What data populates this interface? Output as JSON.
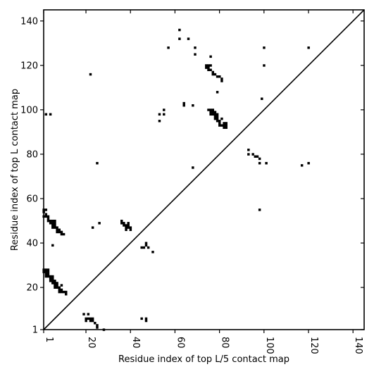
{
  "chart_data": {
    "type": "scatter",
    "xlabel": "Residue index of top L/5 contact map",
    "ylabel": "Residue index of top L contact map",
    "xlim": [
      1,
      145
    ],
    "ylim": [
      1,
      145
    ],
    "x_ticks": [
      1,
      20,
      40,
      60,
      80,
      100,
      120,
      140
    ],
    "y_ticks": [
      1,
      20,
      40,
      60,
      80,
      100,
      120,
      140
    ],
    "x_tick_labels": [
      "1",
      "20",
      "40",
      "60",
      "80",
      "100",
      "120",
      "140"
    ],
    "y_tick_labels": [
      "1",
      "20",
      "40",
      "60",
      "80",
      "100",
      "120",
      "140"
    ],
    "diagonal": true,
    "grid": false,
    "marker": "square",
    "marker_color": "#000000",
    "series": [
      {
        "name": "",
        "points": [
          [
            62,
            136
          ],
          [
            66,
            132
          ],
          [
            62,
            132
          ],
          [
            57,
            128
          ],
          [
            69,
            128
          ],
          [
            69,
            125
          ],
          [
            100,
            128
          ],
          [
            120,
            128
          ],
          [
            76,
            124
          ],
          [
            74,
            120
          ],
          [
            75,
            120
          ],
          [
            76,
            120
          ],
          [
            74,
            119
          ],
          [
            75,
            119
          ],
          [
            75,
            118
          ],
          [
            76,
            118
          ],
          [
            77,
            117
          ],
          [
            77,
            116
          ],
          [
            78,
            116
          ],
          [
            79,
            115
          ],
          [
            80,
            115
          ],
          [
            81,
            114
          ],
          [
            81,
            113
          ],
          [
            22,
            116
          ],
          [
            100,
            120
          ],
          [
            79,
            108
          ],
          [
            99,
            105
          ],
          [
            64,
            103
          ],
          [
            64,
            102
          ],
          [
            68,
            102
          ],
          [
            55,
            100
          ],
          [
            75,
            100
          ],
          [
            76,
            100
          ],
          [
            77,
            100
          ],
          [
            76,
            99
          ],
          [
            77,
            99
          ],
          [
            78,
            99
          ],
          [
            76,
            98
          ],
          [
            77,
            98
          ],
          [
            78,
            98
          ],
          [
            79,
            98
          ],
          [
            78,
            97
          ],
          [
            79,
            97
          ],
          [
            78,
            96
          ],
          [
            79,
            96
          ],
          [
            79,
            95
          ],
          [
            80,
            95
          ],
          [
            81,
            96
          ],
          [
            80,
            94
          ],
          [
            80,
            93
          ],
          [
            81,
            93
          ],
          [
            82,
            93
          ],
          [
            83,
            93
          ],
          [
            82,
            94
          ],
          [
            83,
            94
          ],
          [
            82,
            92
          ],
          [
            83,
            92
          ],
          [
            53,
            98
          ],
          [
            55,
            98
          ],
          [
            53,
            95
          ],
          [
            2,
            98
          ],
          [
            4,
            98
          ],
          [
            25,
            76
          ],
          [
            68,
            74
          ],
          [
            93,
            82
          ],
          [
            93,
            80
          ],
          [
            95,
            80
          ],
          [
            96,
            79
          ],
          [
            97,
            79
          ],
          [
            98,
            78
          ],
          [
            98,
            76
          ],
          [
            101,
            76
          ],
          [
            117,
            75
          ],
          [
            120,
            76
          ],
          [
            98,
            55
          ],
          [
            1,
            55
          ],
          [
            2,
            55
          ],
          [
            1,
            54
          ],
          [
            2,
            53
          ],
          [
            1,
            52
          ],
          [
            2,
            52
          ],
          [
            3,
            52
          ],
          [
            3,
            51
          ],
          [
            3,
            50
          ],
          [
            4,
            50
          ],
          [
            5,
            50
          ],
          [
            6,
            50
          ],
          [
            4,
            49
          ],
          [
            5,
            49
          ],
          [
            6,
            49
          ],
          [
            5,
            48
          ],
          [
            6,
            48
          ],
          [
            5,
            47
          ],
          [
            6,
            47
          ],
          [
            7,
            47
          ],
          [
            7,
            46
          ],
          [
            8,
            46
          ],
          [
            7,
            45
          ],
          [
            8,
            45
          ],
          [
            9,
            45
          ],
          [
            9,
            44
          ],
          [
            10,
            44
          ],
          [
            23,
            47
          ],
          [
            26,
            49
          ],
          [
            36,
            50
          ],
          [
            36,
            49
          ],
          [
            37,
            49
          ],
          [
            37,
            48
          ],
          [
            38,
            48
          ],
          [
            39,
            49
          ],
          [
            39,
            48
          ],
          [
            38,
            47
          ],
          [
            39,
            47
          ],
          [
            40,
            47
          ],
          [
            38,
            46
          ],
          [
            40,
            46
          ],
          [
            5,
            39
          ],
          [
            45,
            38
          ],
          [
            46,
            38
          ],
          [
            47,
            40
          ],
          [
            47,
            39
          ],
          [
            48,
            38
          ],
          [
            50,
            36
          ],
          [
            1,
            28
          ],
          [
            2,
            28
          ],
          [
            3,
            28
          ],
          [
            1,
            27
          ],
          [
            2,
            27
          ],
          [
            3,
            27
          ],
          [
            2,
            26
          ],
          [
            3,
            26
          ],
          [
            2,
            25
          ],
          [
            3,
            25
          ],
          [
            4,
            25
          ],
          [
            5,
            25
          ],
          [
            4,
            24
          ],
          [
            5,
            24
          ],
          [
            4,
            23
          ],
          [
            5,
            23
          ],
          [
            6,
            23
          ],
          [
            5,
            22
          ],
          [
            6,
            22
          ],
          [
            7,
            22
          ],
          [
            6,
            21
          ],
          [
            7,
            21
          ],
          [
            6,
            20
          ],
          [
            7,
            20
          ],
          [
            8,
            20
          ],
          [
            9,
            21
          ],
          [
            8,
            19
          ],
          [
            9,
            19
          ],
          [
            8,
            18
          ],
          [
            9,
            18
          ],
          [
            10,
            18
          ],
          [
            11,
            18
          ],
          [
            11,
            17
          ],
          [
            19,
            8
          ],
          [
            21,
            8
          ],
          [
            20,
            6
          ],
          [
            21,
            6
          ],
          [
            22,
            6
          ],
          [
            20,
            5
          ],
          [
            22,
            5
          ],
          [
            23,
            6
          ],
          [
            23,
            5
          ],
          [
            24,
            4
          ],
          [
            25,
            3
          ],
          [
            25,
            2
          ],
          [
            28,
            1
          ],
          [
            45,
            6
          ],
          [
            47,
            6
          ],
          [
            47,
            5
          ]
        ]
      }
    ]
  }
}
